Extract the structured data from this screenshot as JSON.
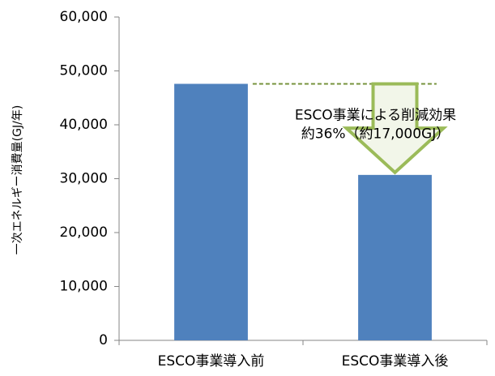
{
  "chart_data": {
    "type": "bar",
    "y_label": "一次エネルギー消費量(GJ/年)",
    "categories": [
      "ESCO事業導入前",
      "ESCO事業導入後"
    ],
    "values": [
      47600,
      30700
    ],
    "color": "#4f81bd",
    "ylim": [
      0,
      60000
    ],
    "yticks": [
      0,
      {
        "value": 10000,
        "label": "10,000"
      },
      {
        "value": 20000,
        "label": "20,000"
      },
      {
        "value": 30000,
        "label": "30,000"
      },
      {
        "value": 40000,
        "label": "40,000"
      },
      {
        "value": 50000,
        "label": "50,000"
      },
      {
        "value": 60000,
        "label": "60,000"
      }
    ],
    "grid": false,
    "annotations": [
      "ESCO事業による削減効果",
      "約36%（約17,000GJ）"
    ]
  }
}
